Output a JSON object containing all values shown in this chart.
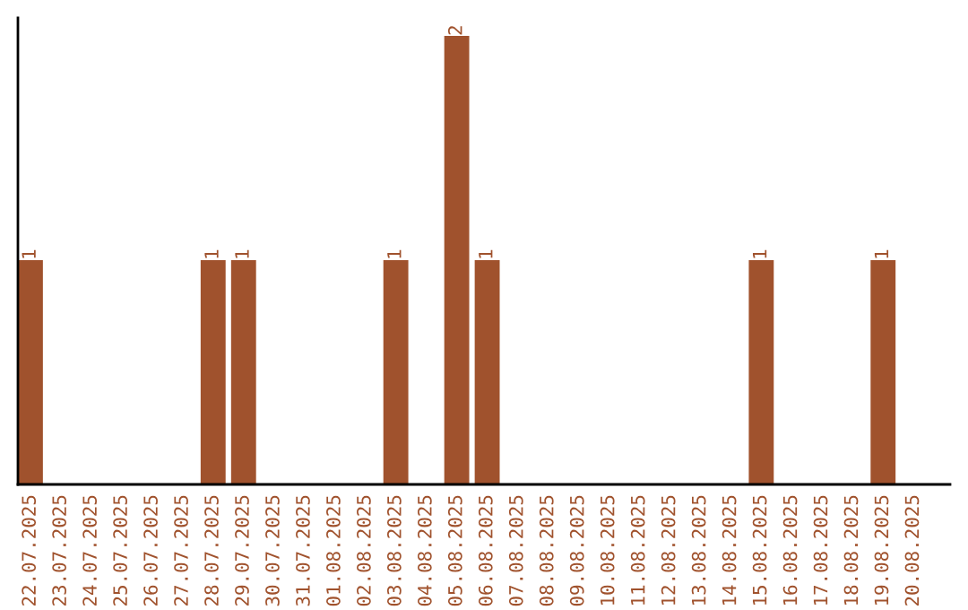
{
  "chart_data": {
    "type": "bar",
    "categories": [
      "22.07.2025",
      "23.07.2025",
      "24.07.2025",
      "25.07.2025",
      "26.07.2025",
      "27.07.2025",
      "28.07.2025",
      "29.07.2025",
      "30.07.2025",
      "31.07.2025",
      "01.08.2025",
      "02.08.2025",
      "03.08.2025",
      "04.08.2025",
      "05.08.2025",
      "06.08.2025",
      "07.08.2025",
      "08.08.2025",
      "09.08.2025",
      "10.08.2025",
      "11.08.2025",
      "12.08.2025",
      "13.08.2025",
      "14.08.2025",
      "15.08.2025",
      "16.08.2025",
      "17.08.2025",
      "18.08.2025",
      "19.08.2025",
      "20.08.2025"
    ],
    "values": [
      1,
      0,
      0,
      0,
      0,
      0,
      1,
      1,
      0,
      0,
      0,
      0,
      1,
      0,
      2,
      1,
      0,
      0,
      0,
      0,
      0,
      0,
      0,
      0,
      1,
      0,
      0,
      0,
      1,
      0
    ],
    "value_labels": [
      "1",
      null,
      null,
      null,
      null,
      null,
      "1",
      "1",
      null,
      null,
      null,
      null,
      "1",
      null,
      "2",
      "1",
      null,
      null,
      null,
      null,
      null,
      null,
      null,
      null,
      "1",
      null,
      null,
      null,
      "1",
      null
    ],
    "color": "#a0522d",
    "grid": false,
    "legend": false
  }
}
